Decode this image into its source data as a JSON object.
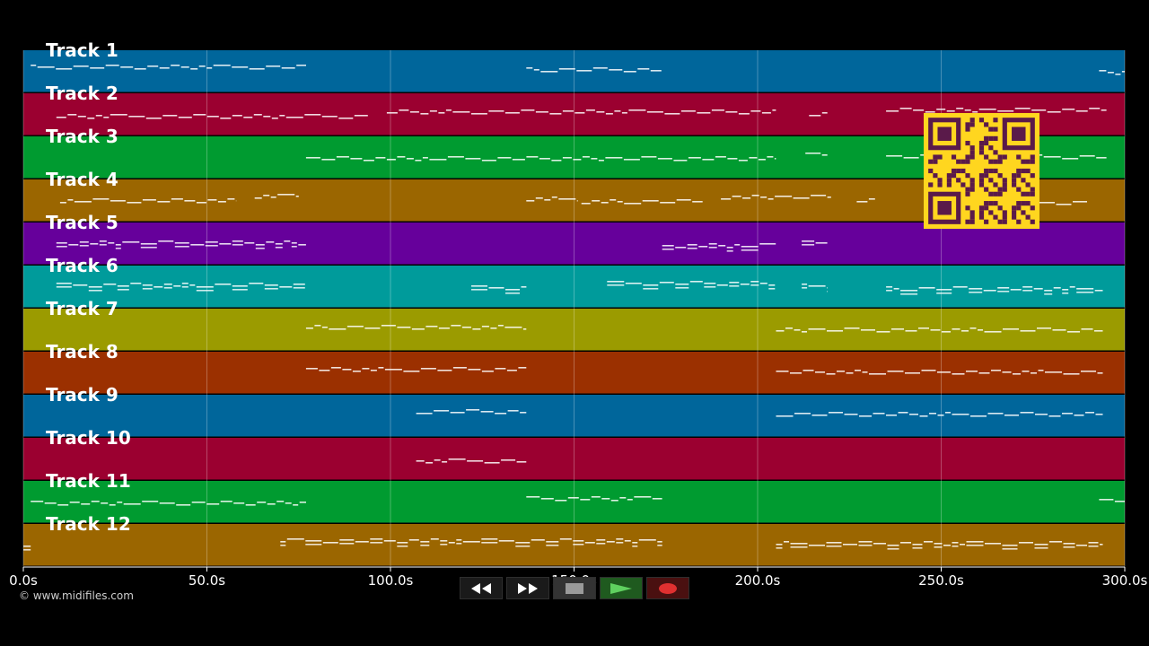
{
  "player": {
    "copyright": "© www.midifiles.com",
    "controls": [
      {
        "name": "rewind-icon",
        "label": "◀◀"
      },
      {
        "name": "fast-forward-icon",
        "label": "▶▶"
      },
      {
        "name": "stop-icon",
        "label": "■"
      },
      {
        "name": "play-icon",
        "label": "▶"
      },
      {
        "name": "record-icon",
        "label": "●"
      }
    ]
  },
  "timeline": {
    "unit": "s",
    "range": [
      0,
      300
    ],
    "ticks": [
      "0.0s",
      "50.0s",
      "100.0s",
      "150.0s",
      "200.0s",
      "250.0s",
      "300.0s"
    ]
  },
  "tracks": [
    {
      "label": "Track 1",
      "color": "#00669b",
      "notes": [
        [
          2,
          77
        ],
        [
          137,
          174
        ],
        [
          293,
          300
        ]
      ]
    },
    {
      "label": "Track 2",
      "color": "#9b0030",
      "notes": [
        [
          9,
          94
        ],
        [
          99,
          205
        ],
        [
          214,
          219
        ],
        [
          235,
          295
        ]
      ]
    },
    {
      "label": "Track 3",
      "color": "#009b30",
      "notes": [
        [
          77,
          205
        ],
        [
          213,
          219
        ],
        [
          235,
          295
        ]
      ]
    },
    {
      "label": "Track 4",
      "color": "#9b6600",
      "notes": [
        [
          10,
          58
        ],
        [
          63,
          75
        ],
        [
          137,
          151
        ],
        [
          152,
          185
        ],
        [
          190,
          220
        ],
        [
          227,
          232
        ],
        [
          250,
          290
        ]
      ]
    },
    {
      "label": "Track 5",
      "color": "#66009b",
      "notes": [
        [
          9,
          77
        ],
        [
          174,
          205
        ],
        [
          212,
          219
        ]
      ]
    },
    {
      "label": "Track 6",
      "color": "#009b9b",
      "notes": [
        [
          9,
          77
        ],
        [
          122,
          137
        ],
        [
          159,
          205
        ],
        [
          212,
          219
        ],
        [
          235,
          294
        ]
      ]
    },
    {
      "label": "Track 7",
      "color": "#9b9b00",
      "notes": [
        [
          77,
          137
        ],
        [
          205,
          294
        ]
      ]
    },
    {
      "label": "Track 8",
      "color": "#9b3000",
      "notes": [
        [
          77,
          137
        ],
        [
          205,
          294
        ]
      ]
    },
    {
      "label": "Track 9",
      "color": "#00669b",
      "notes": [
        [
          107,
          137
        ],
        [
          205,
          294
        ]
      ]
    },
    {
      "label": "Track 10",
      "color": "#9b0030",
      "notes": [
        [
          107,
          137
        ]
      ]
    },
    {
      "label": "Track 11",
      "color": "#009b30",
      "notes": [
        [
          2,
          77
        ],
        [
          137,
          174
        ],
        [
          293,
          300
        ]
      ]
    },
    {
      "label": "Track 12",
      "color": "#9b6600",
      "notes": [
        [
          0,
          2
        ],
        [
          70,
          174
        ],
        [
          205,
          294
        ]
      ]
    }
  ],
  "overlay": {
    "qr_color": "#ffd61f",
    "qr_ink": "#5a1a4a"
  }
}
